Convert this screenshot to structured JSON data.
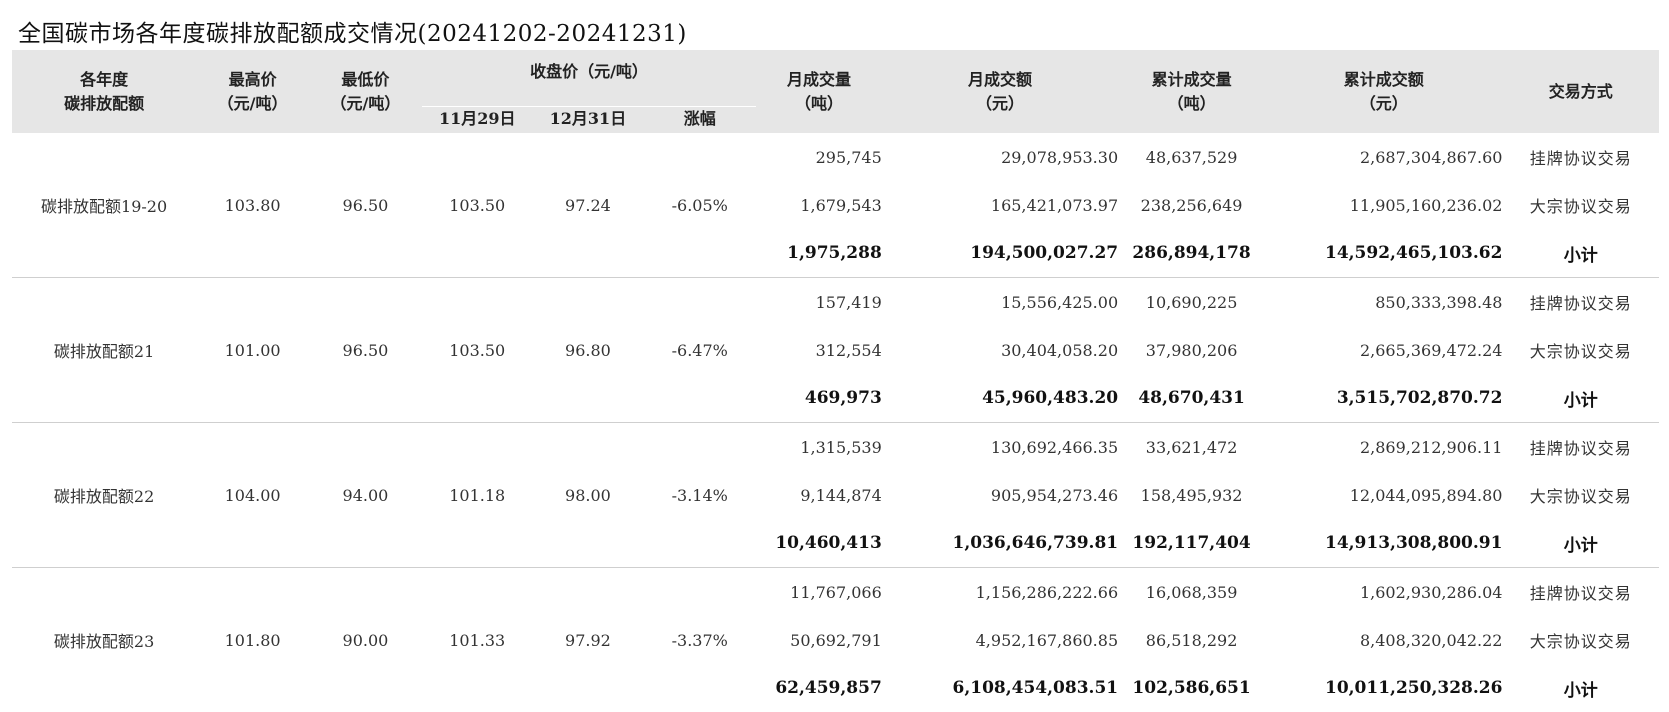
{
  "title": "全国碳市场各年度碳排放配额成交情况(20241202-20241231)",
  "headers": {
    "vintage_line1": "各年度",
    "vintage_line2": "碳排放配额",
    "high_line1": "最高价",
    "high_line2": "（元/吨）",
    "low_line1": "最低价",
    "low_line2": "（元/吨）",
    "close_group": "收盘价（元/吨）",
    "close_nov29": "11月29日",
    "close_dec31": "12月31日",
    "change": "涨幅",
    "monthly_volume_line1": "月成交量",
    "monthly_volume_line2": "（吨）",
    "monthly_amount_line1": "月成交额",
    "monthly_amount_line2": "（元）",
    "cum_volume_line1": "累计成交量",
    "cum_volume_line2": "（吨）",
    "cum_amount_line1": "累计成交额",
    "cum_amount_line2": "（元）",
    "method": "交易方式"
  },
  "groups": [
    {
      "name": "碳排放配额19-20",
      "high": "103.80",
      "low": "96.50",
      "close_nov29": "103.50",
      "close_dec31": "97.24",
      "change": "-6.05%",
      "rows": [
        {
          "monthly_volume": "295,745",
          "monthly_amount": "29,078,953.30",
          "cum_volume": "48,637,529",
          "cum_amount": "2,687,304,867.60",
          "method": "挂牌协议交易"
        },
        {
          "monthly_volume": "1,679,543",
          "monthly_amount": "165,421,073.97",
          "cum_volume": "238,256,649",
          "cum_amount": "11,905,160,236.02",
          "method": "大宗协议交易"
        },
        {
          "monthly_volume": "1,975,288",
          "monthly_amount": "194,500,027.27",
          "cum_volume": "286,894,178",
          "cum_amount": "14,592,465,103.62",
          "method": "小计"
        }
      ]
    },
    {
      "name": "碳排放配额21",
      "high": "101.00",
      "low": "96.50",
      "close_nov29": "103.50",
      "close_dec31": "96.80",
      "change": "-6.47%",
      "rows": [
        {
          "monthly_volume": "157,419",
          "monthly_amount": "15,556,425.00",
          "cum_volume": "10,690,225",
          "cum_amount": "850,333,398.48",
          "method": "挂牌协议交易"
        },
        {
          "monthly_volume": "312,554",
          "monthly_amount": "30,404,058.20",
          "cum_volume": "37,980,206",
          "cum_amount": "2,665,369,472.24",
          "method": "大宗协议交易"
        },
        {
          "monthly_volume": "469,973",
          "monthly_amount": "45,960,483.20",
          "cum_volume": "48,670,431",
          "cum_amount": "3,515,702,870.72",
          "method": "小计"
        }
      ]
    },
    {
      "name": "碳排放配额22",
      "high": "104.00",
      "low": "94.00",
      "close_nov29": "101.18",
      "close_dec31": "98.00",
      "change": "-3.14%",
      "rows": [
        {
          "monthly_volume": "1,315,539",
          "monthly_amount": "130,692,466.35",
          "cum_volume": "33,621,472",
          "cum_amount": "2,869,212,906.11",
          "method": "挂牌协议交易"
        },
        {
          "monthly_volume": "9,144,874",
          "monthly_amount": "905,954,273.46",
          "cum_volume": "158,495,932",
          "cum_amount": "12,044,095,894.80",
          "method": "大宗协议交易"
        },
        {
          "monthly_volume": "10,460,413",
          "monthly_amount": "1,036,646,739.81",
          "cum_volume": "192,117,404",
          "cum_amount": "14,913,308,800.91",
          "method": "小计"
        }
      ]
    },
    {
      "name": "碳排放配额23",
      "high": "101.80",
      "low": "90.00",
      "close_nov29": "101.33",
      "close_dec31": "97.92",
      "change": "-3.37%",
      "rows": [
        {
          "monthly_volume": "11,767,066",
          "monthly_amount": "1,156,286,222.66",
          "cum_volume": "16,068,359",
          "cum_amount": "1,602,930,286.04",
          "method": "挂牌协议交易"
        },
        {
          "monthly_volume": "50,692,791",
          "monthly_amount": "4,952,167,860.85",
          "cum_volume": "86,518,292",
          "cum_amount": "8,408,320,042.22",
          "method": "大宗协议交易"
        },
        {
          "monthly_volume": "62,459,857",
          "monthly_amount": "6,108,454,083.51",
          "cum_volume": "102,586,651",
          "cum_amount": "10,011,250,328.26",
          "method": "小计"
        }
      ]
    }
  ]
}
